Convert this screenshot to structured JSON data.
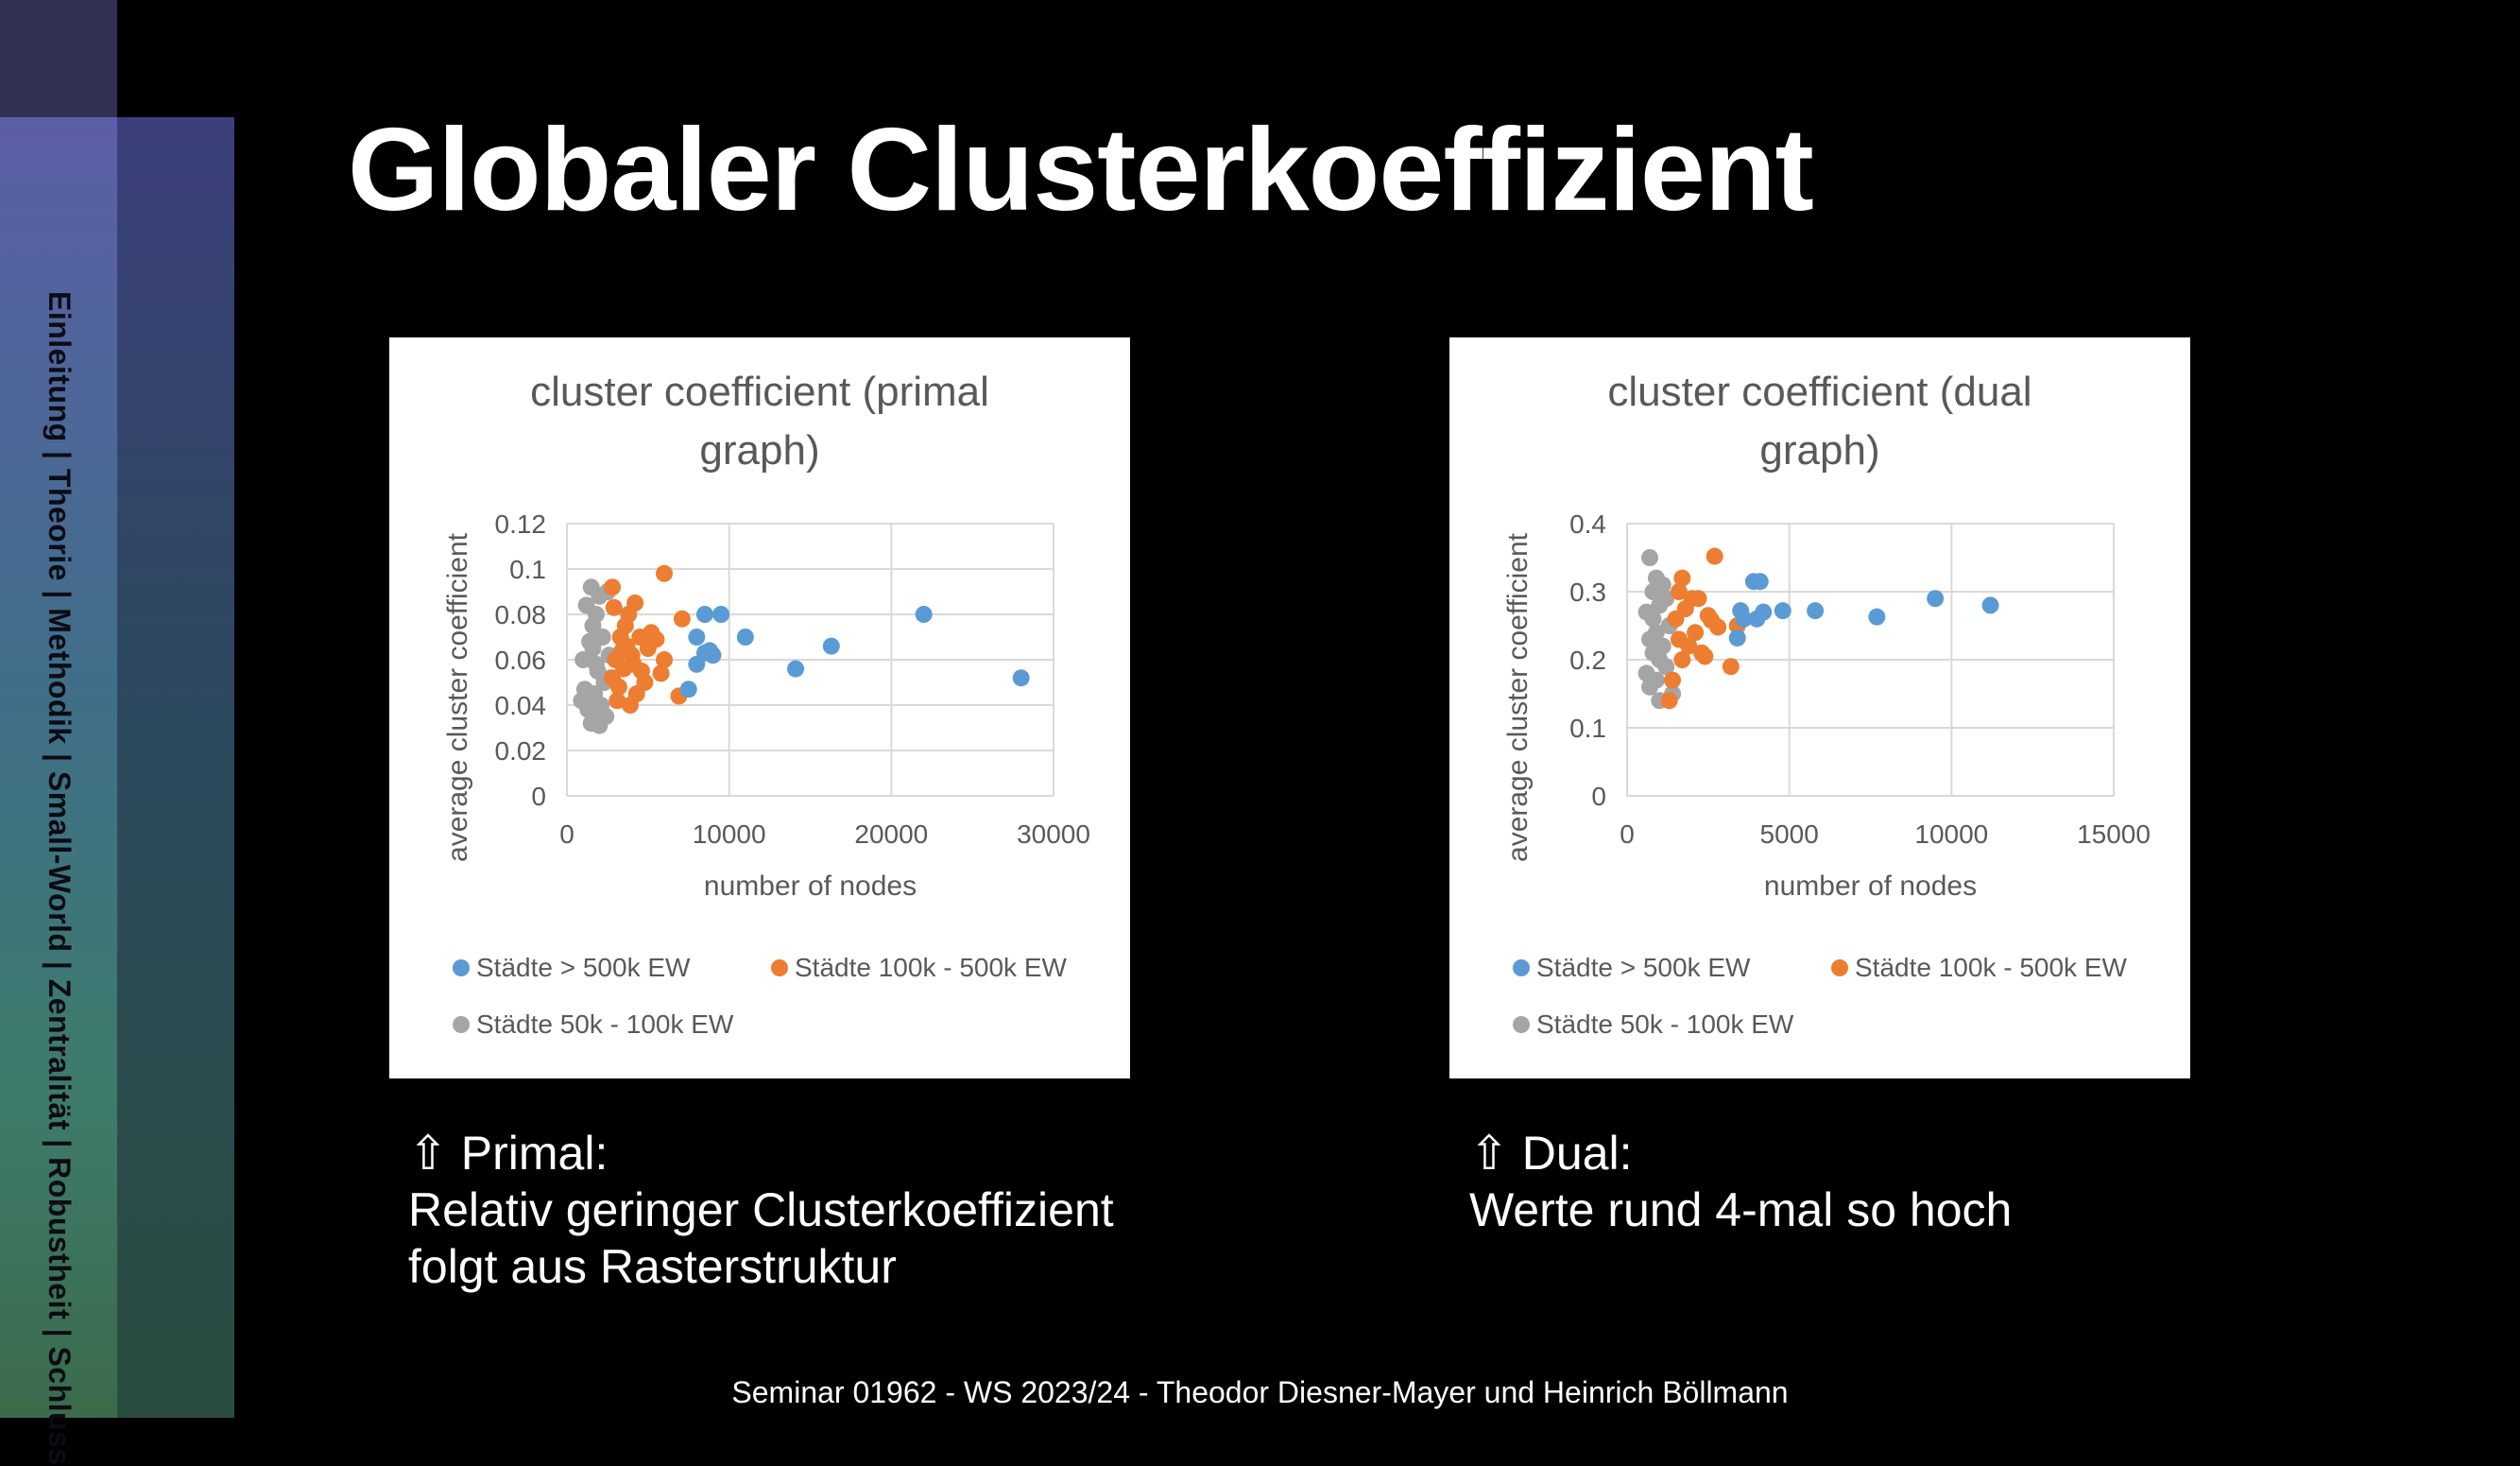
{
  "sidebar": {
    "nav_text": "Einleitung | Theorie | Methodik | Small-World | Zentralität | Robustheit | Schluss"
  },
  "slide": {
    "title": "Globaler Clusterkoeffizient",
    "captions": [
      {
        "heading": "⇧ Primal:",
        "lines": [
          "Relativ geringer Clusterkoeffizient",
          "folgt aus Rasterstruktur"
        ]
      },
      {
        "heading": "⇧ Dual:",
        "lines": [
          "Werte rund 4-mal so hoch"
        ]
      }
    ],
    "footer": "Seminar 01962 - WS 2023/24 - Theodor Diesner-Mayer und Heinrich Böllmann"
  },
  "colors": {
    "big": "#5b9bd5",
    "mid": "#ed7d31",
    "small": "#a5a5a5"
  },
  "chart_data": [
    {
      "type": "scatter",
      "title": "cluster coefficient (primal graph)",
      "title_lines": [
        "cluster coefficient (primal",
        "graph)"
      ],
      "xlabel": "number of nodes",
      "ylabel": "average cluster coefficient",
      "xlim": [
        0,
        30000
      ],
      "ylim": [
        0,
        0.12
      ],
      "xticks": [
        "0",
        "10000",
        "20000",
        "30000"
      ],
      "yticks": [
        "0",
        "0.02",
        "0.04",
        "0.06",
        "0.08",
        "0.1",
        "0.12"
      ],
      "grid": true,
      "legend_position": "bottom",
      "series": [
        {
          "name": "Städte > 500k EW",
          "x": [
            22000,
            28000,
            16300,
            14100,
            11000,
            9500,
            8500,
            8000,
            7500,
            8500,
            8000,
            9000,
            8800
          ],
          "y": [
            0.08,
            0.052,
            0.066,
            0.056,
            0.07,
            0.08,
            0.08,
            0.07,
            0.047,
            0.063,
            0.058,
            0.062,
            0.064
          ]
        },
        {
          "name": "Städte 100k - 500k EW",
          "x": [
            6000,
            2800,
            7100,
            5500,
            6000,
            5800,
            4200,
            3800,
            3600,
            3300,
            4500,
            5000,
            4000,
            3000,
            3500,
            2800,
            4800,
            3200,
            6900,
            4300,
            3900,
            3100,
            3700,
            4100,
            2900,
            5200,
            3400,
            4600
          ],
          "y": [
            0.098,
            0.092,
            0.078,
            0.069,
            0.06,
            0.054,
            0.085,
            0.08,
            0.075,
            0.07,
            0.07,
            0.065,
            0.062,
            0.06,
            0.056,
            0.052,
            0.05,
            0.048,
            0.044,
            0.045,
            0.04,
            0.042,
            0.066,
            0.058,
            0.083,
            0.072,
            0.064,
            0.055
          ]
        },
        {
          "name": "Städte 50k - 100k EW",
          "x": [
            1500,
            2000,
            1200,
            1800,
            1000,
            2500,
            1600,
            2200,
            1400,
            2600,
            1100,
            1900,
            2300,
            1700,
            900,
            2100,
            1300,
            2400,
            1500,
            2000,
            1800,
            1600,
            2700,
            1200,
            2200
          ],
          "y": [
            0.092,
            0.088,
            0.084,
            0.08,
            0.06,
            0.09,
            0.075,
            0.07,
            0.068,
            0.062,
            0.047,
            0.055,
            0.05,
            0.045,
            0.042,
            0.04,
            0.038,
            0.035,
            0.032,
            0.031,
            0.058,
            0.065,
            0.052,
            0.043,
            0.036
          ]
        }
      ]
    },
    {
      "type": "scatter",
      "title": "cluster coefficient (dual graph)",
      "title_lines": [
        "cluster coefficient (dual",
        "graph)"
      ],
      "xlabel": "number of nodes",
      "ylabel": "average cluster coefficient",
      "xlim": [
        0,
        15000
      ],
      "ylim": [
        0,
        0.4
      ],
      "xticks": [
        "0",
        "5000",
        "10000",
        "15000"
      ],
      "yticks": [
        "0",
        "0.1",
        "0.2",
        "0.3",
        "0.4"
      ],
      "grid": true,
      "legend_position": "bottom",
      "series": [
        {
          "name": "Städte > 500k EW",
          "x": [
            11200,
            9500,
            7700,
            5800,
            4800,
            4100,
            3900,
            3500,
            3600,
            4000,
            3400,
            4200
          ],
          "y": [
            0.28,
            0.29,
            0.263,
            0.272,
            0.272,
            0.315,
            0.315,
            0.272,
            0.26,
            0.26,
            0.232,
            0.27
          ],
          "note": ""
        },
        {
          "name": "Städte 100k - 500k EW",
          "x": [
            2700,
            1700,
            2200,
            1600,
            2500,
            3400,
            3200,
            2000,
            2800,
            1800,
            2400,
            1500,
            2100,
            1900,
            2600,
            1700,
            1300,
            2300,
            1400,
            1600
          ],
          "y": [
            0.352,
            0.32,
            0.29,
            0.3,
            0.265,
            0.25,
            0.19,
            0.29,
            0.248,
            0.275,
            0.205,
            0.26,
            0.24,
            0.22,
            0.258,
            0.2,
            0.14,
            0.21,
            0.17,
            0.23
          ]
        },
        {
          "name": "Städte 50k - 100k EW",
          "x": [
            700,
            900,
            1100,
            800,
            1200,
            1000,
            600,
            1300,
            900,
            700,
            1100,
            800,
            1000,
            1200,
            600,
            900,
            1400,
            700,
            1000,
            800
          ],
          "y": [
            0.35,
            0.32,
            0.31,
            0.3,
            0.29,
            0.28,
            0.27,
            0.25,
            0.24,
            0.23,
            0.22,
            0.21,
            0.2,
            0.19,
            0.18,
            0.17,
            0.15,
            0.16,
            0.14,
            0.26
          ]
        }
      ]
    }
  ]
}
